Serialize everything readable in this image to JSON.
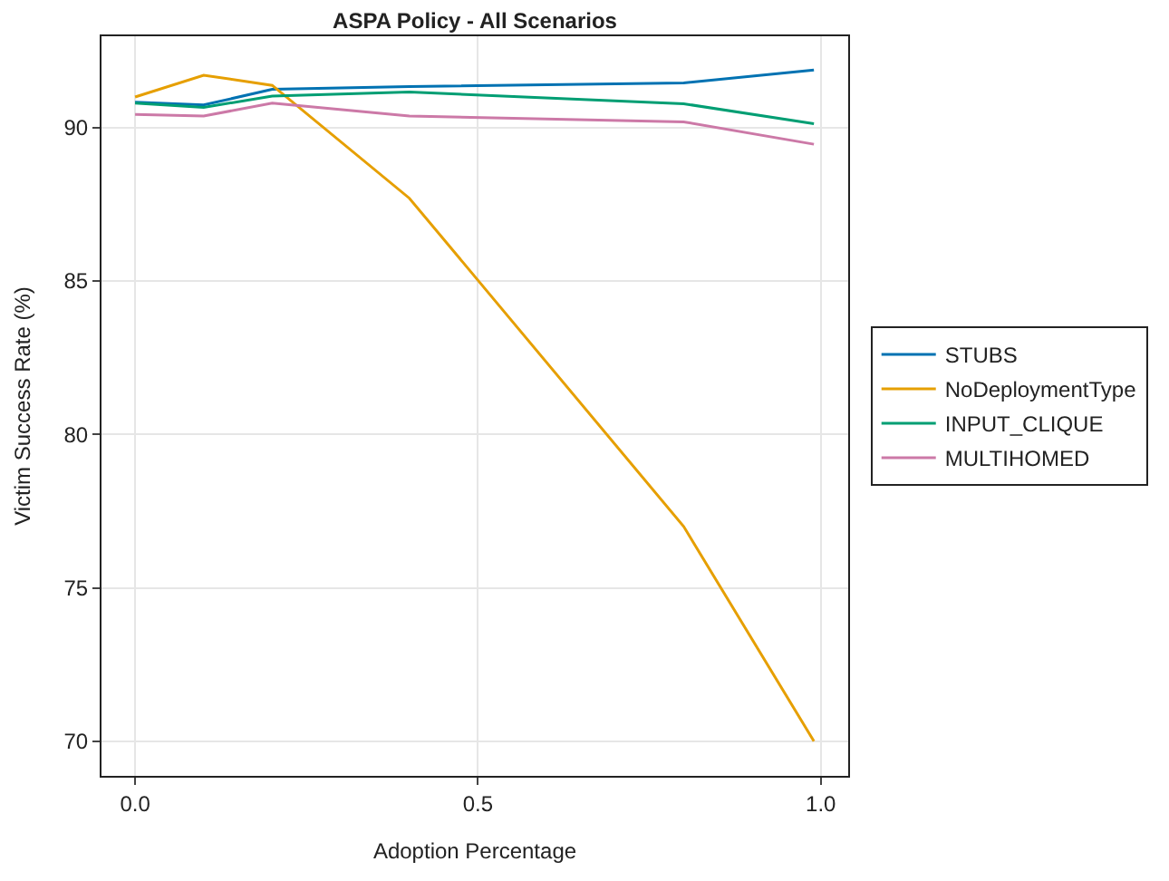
{
  "chart_data": {
    "type": "line",
    "title": "ASPA Policy - All Scenarios",
    "xlabel": "Adoption Percentage",
    "ylabel": "Victim Success Rate (%)",
    "x": [
      0,
      0.1,
      0.2,
      0.4,
      0.8,
      0.99
    ],
    "series": [
      {
        "name": "STUBS",
        "color": "#0072b2",
        "values": [
          90.83,
          90.74,
          91.25,
          91.34,
          91.46,
          91.88
        ]
      },
      {
        "name": "NoDeploymentType",
        "color": "#e69f00",
        "values": [
          91.0,
          91.71,
          91.38,
          87.7,
          77.0,
          70.0
        ]
      },
      {
        "name": "INPUT_CLIQUE",
        "color": "#009e73",
        "values": [
          90.8,
          90.66,
          91.03,
          91.16,
          90.78,
          90.13
        ]
      },
      {
        "name": "MULTIHOMED",
        "color": "#cc79a7",
        "values": [
          90.43,
          90.38,
          90.8,
          90.38,
          90.19,
          89.46
        ]
      }
    ],
    "xlim": [
      -0.049,
      1.04
    ],
    "ylim": [
      68.87,
      92.98
    ],
    "xticks": [
      {
        "value": 0,
        "label": "0.0"
      },
      0.5,
      {
        "value": 1,
        "label": "1.0"
      }
    ],
    "yticks": [
      70,
      75,
      80,
      85,
      90
    ],
    "grid": true,
    "legend": "right",
    "line_style": "solid",
    "marker": "none"
  }
}
